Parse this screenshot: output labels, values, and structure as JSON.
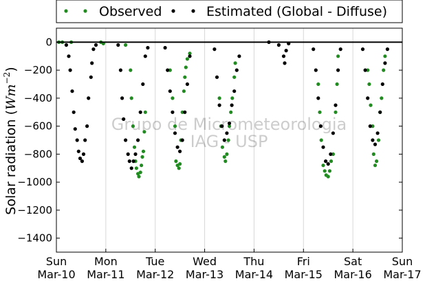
{
  "chart_data": {
    "type": "scatter",
    "ylabel": "Solar radiation (",
    "ylabel_math_symbol": "W",
    "ylabel_math_sub": "m",
    "ylabel_math_exp": "−2",
    "ylabel_close": ")",
    "ylim": [
      -1500,
      100
    ],
    "y_ticks": [
      0,
      -200,
      -400,
      -600,
      -800,
      -1000,
      -1200,
      -1400
    ],
    "x_ticks": [
      {
        "day": 0,
        "weekday": "Sun",
        "date": "Mar-10"
      },
      {
        "day": 1,
        "weekday": "Mon",
        "date": "Mar-11"
      },
      {
        "day": 2,
        "weekday": "Tue",
        "date": "Mar-12"
      },
      {
        "day": 3,
        "weekday": "Wed",
        "date": "Mar-13"
      },
      {
        "day": 4,
        "weekday": "Thu",
        "date": "Mar-14"
      },
      {
        "day": 5,
        "weekday": "Fri",
        "date": "Mar-15"
      },
      {
        "day": 6,
        "weekday": "Sat",
        "date": "Mar-16"
      },
      {
        "day": 7,
        "weekday": "Sun",
        "date": "Mar-17"
      }
    ],
    "grid": "vertical",
    "legend_position": "top",
    "watermark": [
      "Grupo de Micrometeorologia",
      "IAG - USP"
    ],
    "series": [
      {
        "name": "Observed",
        "color": "#228b22",
        "points": [
          [
            0.05,
            0
          ],
          [
            0.12,
            0
          ],
          [
            0.3,
            0
          ],
          [
            0.9,
            0
          ],
          [
            0.95,
            -10
          ],
          [
            1.4,
            -20
          ],
          [
            1.5,
            -200
          ],
          [
            1.52,
            -400
          ],
          [
            1.55,
            -600
          ],
          [
            1.58,
            -750
          ],
          [
            1.6,
            -850
          ],
          [
            1.62,
            -900
          ],
          [
            1.65,
            -940
          ],
          [
            1.67,
            -960
          ],
          [
            1.7,
            -930
          ],
          [
            1.72,
            -880
          ],
          [
            1.74,
            -820
          ],
          [
            1.76,
            -780
          ],
          [
            1.78,
            -640
          ],
          [
            1.8,
            -500
          ],
          [
            2.3,
            -200
          ],
          [
            2.35,
            -400
          ],
          [
            2.4,
            -600
          ],
          [
            2.42,
            -850
          ],
          [
            2.45,
            -880
          ],
          [
            2.48,
            -900
          ],
          [
            2.5,
            -870
          ],
          [
            2.52,
            -700
          ],
          [
            2.55,
            -500
          ],
          [
            2.58,
            -350
          ],
          [
            2.6,
            -250
          ],
          [
            2.62,
            -180
          ],
          [
            2.65,
            -120
          ],
          [
            2.7,
            -80
          ],
          [
            3.3,
            -400
          ],
          [
            3.33,
            -600
          ],
          [
            3.36,
            -750
          ],
          [
            3.4,
            -820
          ],
          [
            3.42,
            -850
          ],
          [
            3.45,
            -800
          ],
          [
            3.48,
            -700
          ],
          [
            3.5,
            -600
          ],
          [
            3.53,
            -500
          ],
          [
            3.56,
            -400
          ],
          [
            3.6,
            -250
          ],
          [
            3.62,
            -150
          ],
          [
            5.3,
            -300
          ],
          [
            5.33,
            -500
          ],
          [
            5.36,
            -700
          ],
          [
            5.4,
            -880
          ],
          [
            5.43,
            -920
          ],
          [
            5.46,
            -950
          ],
          [
            5.5,
            -960
          ],
          [
            5.53,
            -920
          ],
          [
            5.56,
            -850
          ],
          [
            5.6,
            -800
          ],
          [
            5.65,
            -500
          ],
          [
            5.68,
            -300
          ],
          [
            5.7,
            -100
          ],
          [
            6.3,
            -200
          ],
          [
            6.33,
            -300
          ],
          [
            6.36,
            -450
          ],
          [
            6.4,
            -600
          ],
          [
            6.42,
            -800
          ],
          [
            6.45,
            -880
          ],
          [
            6.48,
            -850
          ],
          [
            6.52,
            -700
          ],
          [
            6.55,
            -500
          ],
          [
            6.58,
            -400
          ],
          [
            6.62,
            -200
          ],
          [
            6.65,
            -100
          ]
        ]
      },
      {
        "name": "Estimated (Global - Diffuse)",
        "color": "#000000",
        "points": [
          [
            0.2,
            -20
          ],
          [
            0.25,
            -100
          ],
          [
            0.28,
            -200
          ],
          [
            0.32,
            -350
          ],
          [
            0.35,
            -500
          ],
          [
            0.38,
            -620
          ],
          [
            0.42,
            -700
          ],
          [
            0.45,
            -780
          ],
          [
            0.48,
            -830
          ],
          [
            0.52,
            -850
          ],
          [
            0.55,
            -800
          ],
          [
            0.58,
            -700
          ],
          [
            0.62,
            -600
          ],
          [
            0.65,
            -400
          ],
          [
            0.7,
            -250
          ],
          [
            0.72,
            -150
          ],
          [
            0.75,
            -50
          ],
          [
            0.8,
            -20
          ],
          [
            1.25,
            -20
          ],
          [
            1.3,
            -200
          ],
          [
            1.33,
            -400
          ],
          [
            1.36,
            -550
          ],
          [
            1.4,
            -700
          ],
          [
            1.45,
            -800
          ],
          [
            1.48,
            -850
          ],
          [
            1.52,
            -900
          ],
          [
            1.56,
            -850
          ],
          [
            1.6,
            -800
          ],
          [
            1.65,
            -700
          ],
          [
            1.7,
            -500
          ],
          [
            1.75,
            -300
          ],
          [
            1.8,
            -100
          ],
          [
            1.85,
            -40
          ],
          [
            2.2,
            -40
          ],
          [
            2.25,
            -200
          ],
          [
            2.3,
            -350
          ],
          [
            2.35,
            -500
          ],
          [
            2.4,
            -650
          ],
          [
            2.45,
            -750
          ],
          [
            2.5,
            -780
          ],
          [
            2.55,
            -700
          ],
          [
            2.6,
            -500
          ],
          [
            2.65,
            -300
          ],
          [
            2.7,
            -100
          ],
          [
            3.2,
            -50
          ],
          [
            3.25,
            -250
          ],
          [
            3.3,
            -450
          ],
          [
            3.35,
            -600
          ],
          [
            3.4,
            -700
          ],
          [
            3.45,
            -650
          ],
          [
            3.5,
            -580
          ],
          [
            3.55,
            -450
          ],
          [
            3.6,
            -350
          ],
          [
            3.65,
            -200
          ],
          [
            3.7,
            -100
          ],
          [
            4.3,
            0
          ],
          [
            4.5,
            -20
          ],
          [
            4.6,
            -100
          ],
          [
            4.62,
            -150
          ],
          [
            4.65,
            -60
          ],
          [
            4.7,
            -10
          ],
          [
            5.2,
            -50
          ],
          [
            5.25,
            -200
          ],
          [
            5.3,
            -400
          ],
          [
            5.35,
            -600
          ],
          [
            5.4,
            -750
          ],
          [
            5.45,
            -850
          ],
          [
            5.5,
            -870
          ],
          [
            5.55,
            -800
          ],
          [
            5.6,
            -650
          ],
          [
            5.65,
            -450
          ],
          [
            5.7,
            -200
          ],
          [
            5.75,
            -50
          ],
          [
            6.2,
            -50
          ],
          [
            6.25,
            -200
          ],
          [
            6.3,
            -400
          ],
          [
            6.35,
            -600
          ],
          [
            6.4,
            -700
          ],
          [
            6.45,
            -730
          ],
          [
            6.5,
            -650
          ],
          [
            6.55,
            -500
          ],
          [
            6.6,
            -300
          ],
          [
            6.65,
            -150
          ],
          [
            6.7,
            -50
          ]
        ]
      }
    ]
  }
}
